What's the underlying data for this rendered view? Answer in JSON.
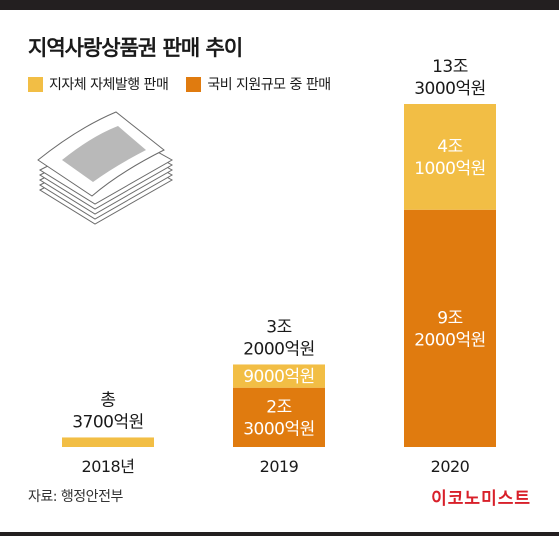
{
  "title": "지역사랑상품권 판매 추이",
  "colors": {
    "self_issued": "#f2be45",
    "national_support": "#e07b0f",
    "dark": "#231f20",
    "brand": "#d8202a"
  },
  "legend": [
    {
      "label": "지자체 자체발행 판매",
      "color": "#f2be45"
    },
    {
      "label": "국비 지원규모 중 판매",
      "color": "#e07b0f"
    }
  ],
  "chart_data": {
    "type": "bar",
    "stacked": true,
    "title": "지역사랑상품권 판매 추이",
    "unit": "억원",
    "categories": [
      "2018년",
      "2019",
      "2020"
    ],
    "series": [
      {
        "name": "국비 지원규모 중 판매",
        "color": "#e07b0f",
        "values": [
          0,
          23000,
          92000
        ]
      },
      {
        "name": "지자체 자체발행 판매",
        "color": "#f2be45",
        "values": [
          3700,
          9000,
          41000
        ]
      }
    ],
    "totals": [
      3700,
      32000,
      133000
    ],
    "total_labels": [
      [
        "총",
        "3700억원"
      ],
      [
        "3조",
        "2000억원"
      ],
      [
        "13조",
        "3000억원"
      ]
    ],
    "segment_labels": [
      {
        "national_support": [],
        "self_issued": []
      },
      {
        "national_support": [
          "2조",
          "3000억원"
        ],
        "self_issued": [
          "9000억원"
        ]
      },
      {
        "national_support": [
          "9조",
          "2000억원"
        ],
        "self_issued": [
          "4조",
          "1000억원"
        ]
      }
    ],
    "ylim": [
      0,
      133000
    ],
    "xlabel": "",
    "ylabel": "",
    "grid": false
  },
  "source": "자료: 행정안전부",
  "brand": "이코노미스트"
}
